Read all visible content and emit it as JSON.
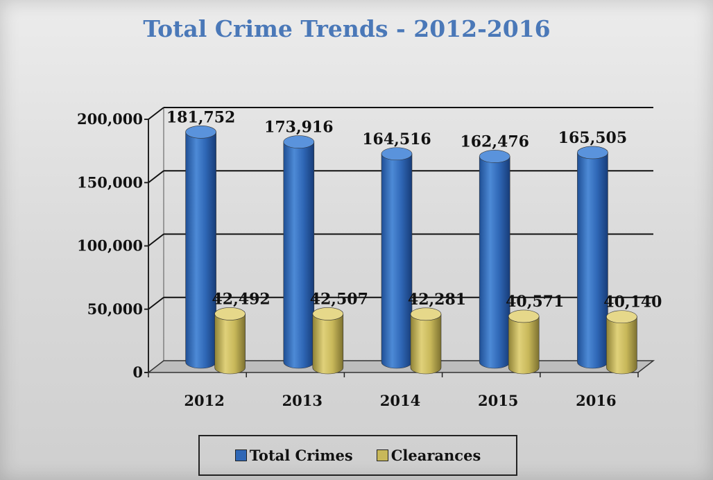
{
  "chart_data": {
    "type": "bar",
    "title": "Total Crime Trends - 2012-2016",
    "categories": [
      "2012",
      "2013",
      "2014",
      "2015",
      "2016"
    ],
    "series": [
      {
        "name": "Total Crimes",
        "color": "#2f67b6",
        "values": [
          181752,
          173916,
          164516,
          162476,
          165505
        ],
        "labels": [
          "181,752",
          "173,916",
          "164,516",
          "162,476",
          "165,505"
        ]
      },
      {
        "name": "Clearances",
        "color": "#c8b85a",
        "values": [
          42492,
          42507,
          42281,
          40571,
          40140
        ],
        "labels": [
          "42,492",
          "42,507",
          "42,281",
          "40,571",
          "40,140"
        ]
      }
    ],
    "yticks": [
      "0",
      "50,000",
      "100,000",
      "150,000",
      "200,000"
    ],
    "ylim": [
      0,
      200000
    ],
    "grid": true,
    "legend_position": "bottom",
    "style": "3d-cylinder"
  }
}
